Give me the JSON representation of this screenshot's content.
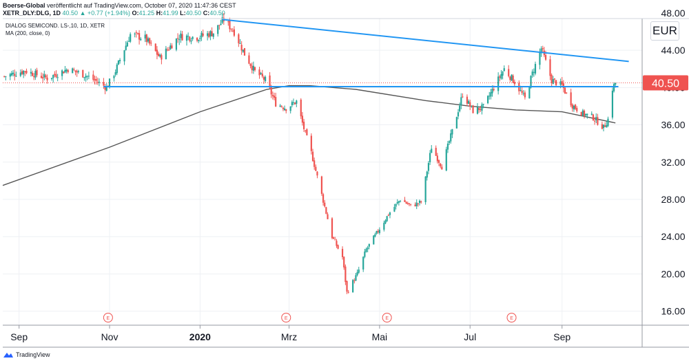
{
  "header": {
    "line1_author": "Boerse-Global",
    "line1_rest": " veröffentlicht auf TradingView.com, October 07, 2020 11:47:36 CEST",
    "symbol": "XETR_DLY:DLG, 1D",
    "last": "40.50",
    "change": "▲ +0.77 (+1.94%)",
    "open_label": "O:",
    "open": "41.25",
    "high_label": "H:",
    "high": "41.99",
    "low_label": "L:",
    "low": "40.50",
    "close_label": "C:",
    "close": "40.50"
  },
  "legend": {
    "instrument": "DIALOG SEMICOND. LS-,10, 1D, XETR",
    "indicator": "MA (200, close, 0)"
  },
  "currency": "EUR",
  "price_label": "40.50",
  "footer": {
    "brand": "TradingView"
  },
  "colors": {
    "up": "#26a69a",
    "down": "#ef5350",
    "trendline": "#2196f3",
    "ma": "#555555",
    "grid": "#eef0f4",
    "price_line": "#ef5350"
  },
  "chart_data": {
    "type": "candlestick",
    "ylim": [
      14.5,
      47.4
    ],
    "y_ticks": [
      "16.00",
      "20.00",
      "24.00",
      "28.00",
      "32.00",
      "36.00",
      "40.00",
      "44.00"
    ],
    "y_tick_top_partial": "48.00",
    "x_labels": [
      {
        "label": "Sep",
        "date": "2019-09-01",
        "bold": false
      },
      {
        "label": "Nov",
        "date": "2019-11-01",
        "bold": false
      },
      {
        "label": "2020",
        "date": "2020-01-01",
        "bold": true
      },
      {
        "label": "Mrz",
        "date": "2020-03-01",
        "bold": false
      },
      {
        "label": "Mai",
        "date": "2020-05-01",
        "bold": false
      },
      {
        "label": "Jul",
        "date": "2020-07-01",
        "bold": false
      },
      {
        "label": "Sep",
        "date": "2020-09-01",
        "bold": false
      }
    ],
    "x_range": [
      "2019-08-21",
      "2020-10-25"
    ],
    "earnings_events": [
      {
        "date": "2019-10-31",
        "label": "E"
      },
      {
        "date": "2020-02-28",
        "label": "E"
      },
      {
        "date": "2020-05-06",
        "label": "E"
      },
      {
        "date": "2020-07-29",
        "label": "E"
      }
    ],
    "close_anchors": [
      [
        "2019-08-22",
        41.2
      ],
      [
        "2019-09-05",
        41.8
      ],
      [
        "2019-09-20",
        41.0
      ],
      [
        "2019-10-04",
        42.0
      ],
      [
        "2019-10-16",
        41.3
      ],
      [
        "2019-10-24",
        40.6
      ],
      [
        "2019-10-30",
        40.0
      ],
      [
        "2019-11-05",
        41.8
      ],
      [
        "2019-11-15",
        45.7
      ],
      [
        "2019-11-25",
        45.3
      ],
      [
        "2019-12-05",
        43.2
      ],
      [
        "2019-12-18",
        45.5
      ],
      [
        "2019-12-30",
        45.4
      ],
      [
        "2020-01-10",
        45.9
      ],
      [
        "2020-01-17",
        47.3
      ],
      [
        "2020-01-24",
        46.0
      ],
      [
        "2020-01-31",
        43.6
      ],
      [
        "2020-02-07",
        41.7
      ],
      [
        "2020-02-14",
        40.8
      ],
      [
        "2020-02-21",
        38.3
      ],
      [
        "2020-02-28",
        37.8
      ],
      [
        "2020-03-06",
        38.5
      ],
      [
        "2020-03-11",
        35.6
      ],
      [
        "2020-03-16",
        33.0
      ],
      [
        "2020-03-23",
        28.5
      ],
      [
        "2020-03-30",
        24.0
      ],
      [
        "2020-04-06",
        21.8
      ],
      [
        "2020-04-09",
        18.0
      ],
      [
        "2020-04-16",
        20.0
      ],
      [
        "2020-04-22",
        22.6
      ],
      [
        "2020-04-30",
        24.6
      ],
      [
        "2020-05-07",
        26.4
      ],
      [
        "2020-05-15",
        28.0
      ],
      [
        "2020-05-22",
        27.3
      ],
      [
        "2020-05-29",
        27.7
      ],
      [
        "2020-06-05",
        33.6
      ],
      [
        "2020-06-12",
        31.5
      ],
      [
        "2020-06-19",
        35.3
      ],
      [
        "2020-06-26",
        39.3
      ],
      [
        "2020-07-03",
        37.5
      ],
      [
        "2020-07-10",
        37.9
      ],
      [
        "2020-07-17",
        40.0
      ],
      [
        "2020-07-24",
        42.0
      ],
      [
        "2020-07-31",
        40.6
      ],
      [
        "2020-08-07",
        38.8
      ],
      [
        "2020-08-12",
        41.5
      ],
      [
        "2020-08-18",
        44.2
      ],
      [
        "2020-08-25",
        40.8
      ],
      [
        "2020-09-01",
        40.2
      ],
      [
        "2020-09-08",
        38.1
      ],
      [
        "2020-09-15",
        37.2
      ],
      [
        "2020-09-22",
        36.8
      ],
      [
        "2020-09-29",
        35.7
      ],
      [
        "2020-10-02",
        36.6
      ],
      [
        "2020-10-05",
        39.9
      ],
      [
        "2020-10-07",
        40.5
      ]
    ],
    "ma200": [
      [
        "2019-08-21",
        29.5
      ],
      [
        "2019-11-01",
        33.6
      ],
      [
        "2020-01-01",
        37.4
      ],
      [
        "2020-02-15",
        39.8
      ],
      [
        "2020-03-01",
        40.2
      ],
      [
        "2020-03-15",
        40.2
      ],
      [
        "2020-04-15",
        39.8
      ],
      [
        "2020-06-01",
        38.6
      ],
      [
        "2020-07-01",
        38.0
      ],
      [
        "2020-08-01",
        37.6
      ],
      [
        "2020-09-01",
        37.4
      ],
      [
        "2020-10-07",
        36.2
      ]
    ],
    "resistance_trendline": [
      [
        "2020-01-16",
        47.3
      ],
      [
        "2020-10-16",
        42.8
      ]
    ],
    "support_line": [
      [
        "2019-10-28",
        40.1
      ],
      [
        "2020-10-09",
        40.1
      ]
    ],
    "last_price": 40.5
  }
}
